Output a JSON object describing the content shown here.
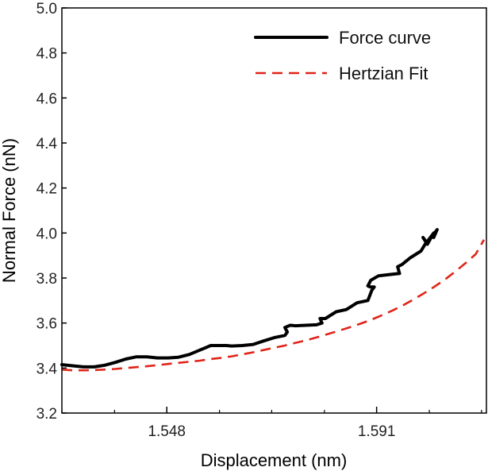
{
  "chart_data": {
    "type": "line",
    "title": "",
    "xlabel": "Displacement (nm)",
    "ylabel": "Normal Force (nN)",
    "xlim": [
      1.5265,
      1.6135
    ],
    "ylim": [
      3.2,
      5.0
    ],
    "x_ticks": [
      {
        "value": 1.548,
        "label": "1.548"
      },
      {
        "value": 1.591,
        "label": "1.591"
      }
    ],
    "x_minor_ticks": [
      1.5265,
      1.5373,
      1.5588,
      1.5695,
      1.5803,
      1.6018,
      1.6125
    ],
    "y_ticks": [
      {
        "value": 3.2,
        "label": "3.2"
      },
      {
        "value": 3.4,
        "label": "3.4"
      },
      {
        "value": 3.6,
        "label": "3.6"
      },
      {
        "value": 3.8,
        "label": "3.8"
      },
      {
        "value": 4.0,
        "label": "4.0"
      },
      {
        "value": 4.2,
        "label": "4.2"
      },
      {
        "value": 4.4,
        "label": "4.4"
      },
      {
        "value": 4.6,
        "label": "4.6"
      },
      {
        "value": 4.8,
        "label": "4.8"
      },
      {
        "value": 5.0,
        "label": "5.0"
      }
    ],
    "grid": false,
    "legend_position": "top-right",
    "series": [
      {
        "name": "Force curve",
        "color": "#000000",
        "style": "solid",
        "x": [
          1.5265,
          1.5287,
          1.5309,
          1.5331,
          1.5352,
          1.5374,
          1.5396,
          1.5418,
          1.5439,
          1.5461,
          1.5483,
          1.5504,
          1.5526,
          1.5548,
          1.557,
          1.5581,
          1.559,
          1.5602,
          1.5613,
          1.5635,
          1.5657,
          1.5678,
          1.57,
          1.5722,
          1.5727,
          1.5722,
          1.5733,
          1.5744,
          1.5765,
          1.5787,
          1.5798,
          1.5794,
          1.5805,
          1.5827,
          1.5848,
          1.587,
          1.5892,
          1.59,
          1.5905,
          1.5897,
          1.5892,
          1.5898,
          1.5914,
          1.5935,
          1.5957,
          1.5953,
          1.5962,
          1.5979,
          1.6001,
          1.6012,
          1.6005,
          1.6014,
          1.6027,
          1.6013,
          1.6022,
          1.6032,
          1.6027,
          1.6034
        ],
        "y": [
          3.415,
          3.41,
          3.405,
          3.405,
          3.412,
          3.425,
          3.44,
          3.45,
          3.45,
          3.445,
          3.445,
          3.448,
          3.46,
          3.48,
          3.5,
          3.5,
          3.5,
          3.5,
          3.498,
          3.5,
          3.505,
          3.52,
          3.535,
          3.545,
          3.56,
          3.58,
          3.59,
          3.588,
          3.59,
          3.592,
          3.6,
          3.62,
          3.62,
          3.65,
          3.66,
          3.69,
          3.7,
          3.745,
          3.76,
          3.76,
          3.765,
          3.79,
          3.81,
          3.815,
          3.82,
          3.85,
          3.86,
          3.89,
          3.92,
          3.96,
          3.98,
          3.95,
          4.0,
          3.96,
          3.98,
          4.01,
          3.98,
          4.015
        ]
      },
      {
        "name": "Hertzian Fit",
        "color": "#e02418",
        "style": "dashed",
        "x": [
          1.5265,
          1.5287,
          1.5309,
          1.5331,
          1.5352,
          1.5374,
          1.5396,
          1.5418,
          1.5439,
          1.5461,
          1.5483,
          1.5504,
          1.5526,
          1.5548,
          1.557,
          1.5591,
          1.5613,
          1.5635,
          1.5657,
          1.5678,
          1.57,
          1.5722,
          1.5744,
          1.5765,
          1.5787,
          1.5809,
          1.583,
          1.5852,
          1.5874,
          1.5896,
          1.5917,
          1.5939,
          1.5961,
          1.5982,
          1.6004,
          1.6026,
          1.6048,
          1.6069,
          1.6091,
          1.6113,
          1.613
        ],
        "y": [
          3.393,
          3.39,
          3.39,
          3.391,
          3.393,
          3.396,
          3.4,
          3.404,
          3.408,
          3.413,
          3.418,
          3.423,
          3.428,
          3.433,
          3.44,
          3.445,
          3.452,
          3.461,
          3.47,
          3.48,
          3.49,
          3.5,
          3.512,
          3.523,
          3.536,
          3.55,
          3.564,
          3.579,
          3.595,
          3.612,
          3.631,
          3.652,
          3.675,
          3.7,
          3.728,
          3.758,
          3.79,
          3.825,
          3.864,
          3.906,
          3.97
        ]
      }
    ]
  }
}
